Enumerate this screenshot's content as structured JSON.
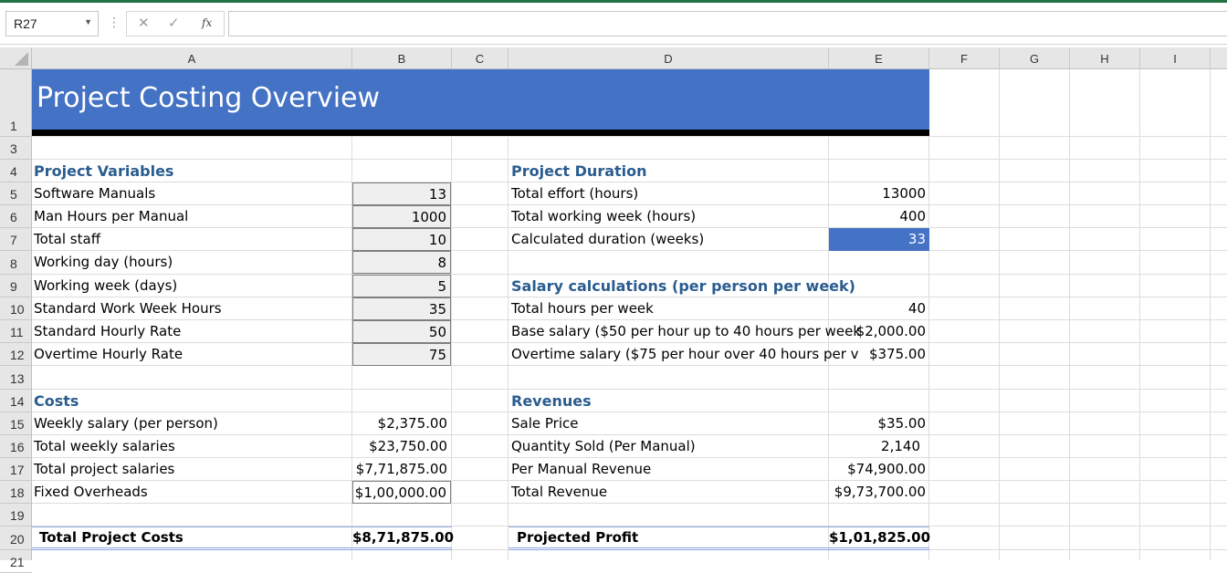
{
  "formula_bar": {
    "name_box": "R27",
    "cancel_glyph": "✕",
    "enter_glyph": "✓",
    "fx_label": "fx",
    "formula": ""
  },
  "columns": [
    "A",
    "B",
    "C",
    "D",
    "E",
    "F",
    "G",
    "H",
    "I"
  ],
  "rows": [
    "1",
    "3",
    "4",
    "5",
    "6",
    "7",
    "8",
    "9",
    "10",
    "11",
    "12",
    "13",
    "14",
    "15",
    "16",
    "17",
    "18",
    "19",
    "20",
    "21"
  ],
  "colors": {
    "accent": "#4472c4",
    "section_text": "#2a5c8f",
    "excel_green": "#217346"
  },
  "sheet": {
    "title": "Project Costing Overview",
    "variables": {
      "heading": "Project Variables",
      "items": [
        {
          "label": "Software Manuals",
          "value": "13"
        },
        {
          "label": "Man Hours per Manual",
          "value": "1000"
        },
        {
          "label": "Total staff",
          "value": "10"
        },
        {
          "label": "Working day (hours)",
          "value": "8"
        },
        {
          "label": "Working week (days)",
          "value": "5"
        },
        {
          "label": "Standard Work Week Hours",
          "value": "35"
        },
        {
          "label": "Standard Hourly Rate",
          "value": "50"
        },
        {
          "label": "Overtime Hourly Rate",
          "value": "75"
        }
      ]
    },
    "duration": {
      "heading": "Project Duration",
      "items": [
        {
          "label": "Total effort (hours)",
          "value": "13000"
        },
        {
          "label": "Total working week (hours)",
          "value": "400"
        },
        {
          "label": "Calculated duration (weeks)",
          "value": "33"
        }
      ]
    },
    "salary": {
      "heading": "Salary calculations (per person per week)",
      "items": [
        {
          "label": "Total hours per week",
          "value": "40"
        },
        {
          "label": "Base salary ($50 per hour up to 40 hours per week",
          "value": "$2,000.00"
        },
        {
          "label": "Overtime salary ($75 per hour over 40 hours per v",
          "value": "$375.00"
        }
      ]
    },
    "costs": {
      "heading": "Costs",
      "items": [
        {
          "label": "Weekly salary (per person)",
          "value": "$2,375.00"
        },
        {
          "label": "Total weekly salaries",
          "value": "$23,750.00"
        },
        {
          "label": "Total project salaries",
          "value": "$7,71,875.00"
        },
        {
          "label": "Fixed Overheads",
          "value": "$1,00,000.00"
        }
      ],
      "total_label": "Total Project Costs",
      "total_value": "$8,71,875.00"
    },
    "revenues": {
      "heading": "Revenues",
      "items": [
        {
          "label": "Sale Price",
          "value": "$35.00"
        },
        {
          "label": "Quantity Sold (Per Manual)",
          "value": "2,140"
        },
        {
          "label": "Per Manual Revenue",
          "value": "$74,900.00"
        },
        {
          "label": "Total Revenue",
          "value": "$9,73,700.00"
        }
      ],
      "total_label": "Projected Profit",
      "total_value": "$1,01,825.00"
    }
  }
}
